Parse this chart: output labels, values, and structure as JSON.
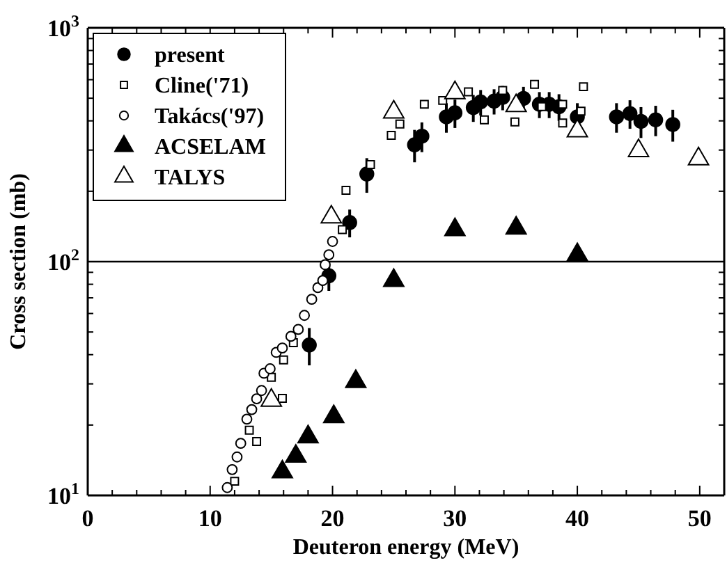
{
  "chart_data": {
    "type": "scatter",
    "xlabel": "Deuteron energy (MeV)",
    "ylabel": "Cross section (mb)",
    "log": "y",
    "xlim": [
      0,
      52
    ],
    "ylim": [
      10,
      1000
    ],
    "xticks": [
      0,
      {
        "value": 2,
        "label": null
      },
      {
        "value": 4,
        "label": null
      },
      {
        "value": 6,
        "label": null
      },
      {
        "value": 8,
        "label": null
      },
      10,
      {
        "value": 12,
        "label": null
      },
      {
        "value": 14,
        "label": null
      },
      {
        "value": 16,
        "label": null
      },
      {
        "value": 18,
        "label": null
      },
      20,
      {
        "value": 22,
        "label": null
      },
      {
        "value": 24,
        "label": null
      },
      {
        "value": 26,
        "label": null
      },
      {
        "value": 28,
        "label": null
      },
      30,
      {
        "value": 32,
        "label": null
      },
      {
        "value": 34,
        "label": null
      },
      {
        "value": 36,
        "label": null
      },
      {
        "value": 38,
        "label": null
      },
      40,
      {
        "value": 42,
        "label": null
      },
      {
        "value": 44,
        "label": null
      },
      {
        "value": 46,
        "label": null
      },
      {
        "value": 48,
        "label": null
      },
      50
    ],
    "yticks": [
      {
        "value": 10,
        "label": "10$^{1}$"
      },
      {
        "value": 20,
        "label": null
      },
      {
        "value": 30,
        "label": null
      },
      {
        "value": 40,
        "label": null
      },
      {
        "value": 50,
        "label": null
      },
      {
        "value": 60,
        "label": null
      },
      {
        "value": 70,
        "label": null
      },
      {
        "value": 80,
        "label": null
      },
      {
        "value": 90,
        "label": null
      },
      {
        "value": 100,
        "label": "10$^{2}$"
      },
      {
        "value": 200,
        "label": null
      },
      {
        "value": 300,
        "label": null
      },
      {
        "value": 400,
        "label": null
      },
      {
        "value": 500,
        "label": null
      },
      {
        "value": 600,
        "label": null
      },
      {
        "value": 700,
        "label": null
      },
      {
        "value": 800,
        "label": null
      },
      {
        "value": 900,
        "label": null
      },
      {
        "value": 1000,
        "label": "10$^{3}$"
      }
    ],
    "ref_lines": [
      {
        "axis": "y",
        "value": 100,
        "color": "#000000"
      }
    ],
    "legend": "top left",
    "grid": false,
    "series": [
      {
        "name": "present",
        "marker": "circle",
        "color": "#000000",
        "x": [
          18.1,
          19.7,
          21.4,
          22.8,
          26.7,
          27.3,
          29.3,
          30.0,
          31.5,
          32.1,
          33.2,
          33.9,
          35.6,
          36.9,
          37.7,
          38.5,
          40.0,
          43.2,
          44.3,
          45.2,
          46.4,
          47.8
        ],
        "values": [
          44,
          87,
          147,
          237,
          316,
          344,
          416,
          433,
          456,
          482,
          486,
          504,
          499,
          471,
          471,
          460,
          416,
          416,
          430,
          398,
          404,
          386
        ],
        "errors": [
          8,
          12,
          20,
          40,
          50,
          50,
          60,
          60,
          60,
          60,
          60,
          60,
          60,
          60,
          60,
          60,
          60,
          60,
          60,
          60,
          60,
          60
        ]
      },
      {
        "name": "Cline('71)",
        "marker": "square",
        "color": "#ffffff",
        "x": [
          12.0,
          13.2,
          13.8,
          15.0,
          15.9,
          16.0,
          16.8,
          20.8,
          21.1,
          23.1,
          24.8,
          25.5,
          27.5,
          29.0,
          31.1,
          32.4,
          33.9,
          34.9,
          36.5,
          37.1,
          38.8,
          38.8,
          40.3,
          40.5
        ],
        "values": [
          11.5,
          19,
          17,
          32,
          26,
          38,
          45,
          137,
          202,
          260,
          347,
          388,
          471,
          489,
          532,
          404,
          540,
          396,
          573,
          460,
          392,
          471,
          440,
          560
        ]
      },
      {
        "name": "Takács('97)",
        "marker": "circle",
        "color": "#ffffff",
        "x": [
          11.4,
          11.8,
          12.2,
          12.5,
          13.0,
          13.4,
          13.8,
          14.2,
          14.4,
          14.9,
          15.4,
          15.9,
          16.6,
          17.2,
          17.7,
          18.3,
          18.8,
          19.2,
          19.4,
          19.7,
          20.0
        ],
        "values": [
          10.8,
          12.9,
          14.6,
          16.7,
          21.2,
          23.3,
          25.9,
          28.1,
          33.3,
          34.8,
          40.9,
          42.7,
          47.9,
          51.3,
          58.9,
          69,
          77.4,
          83,
          97,
          107,
          122
        ]
      },
      {
        "name": "ACSELAM",
        "marker": "triangle",
        "color": "#000000",
        "x": [
          15.9,
          17.0,
          18.0,
          20.1,
          21.9,
          25.0,
          30.0,
          35.0,
          40.0
        ],
        "values": [
          12.6,
          14.7,
          17.8,
          21.7,
          30.7,
          83,
          137,
          139,
          107
        ]
      },
      {
        "name": "TALYS",
        "marker": "triangle",
        "color": "#ffffff",
        "x": [
          15.0,
          19.9,
          25.0,
          30.0,
          35.0,
          40.0,
          45.0,
          49.9
        ],
        "values": [
          25.5,
          155,
          436,
          527,
          464,
          362,
          298,
          275
        ]
      }
    ]
  }
}
